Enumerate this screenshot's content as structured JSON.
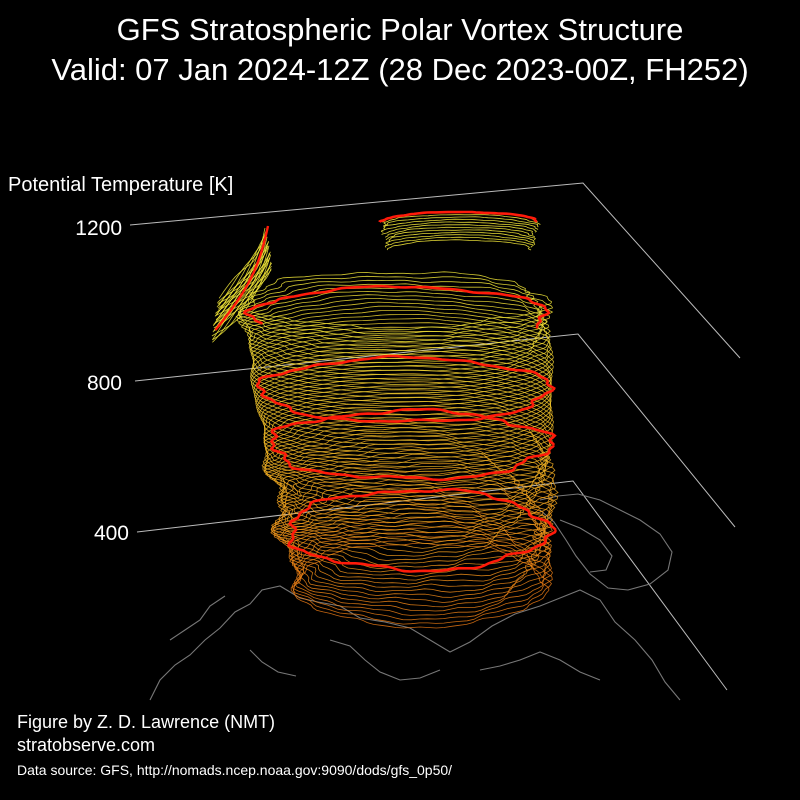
{
  "title": "GFS Stratospheric Polar Vortex Structure",
  "subtitle": "Valid: 07 Jan 2024-12Z  (28 Dec 2023-00Z, FH252)",
  "credits": {
    "author": "Figure by Z. D. Lawrence (NMT)",
    "site": "stratobserve.com",
    "source": "Data source: GFS, http://nomads.ncep.noaa.gov:9090/dods/gfs_0p50/"
  },
  "colors": {
    "background": "#000000",
    "highlight_contour": "#ff1a0a",
    "upper_contours": "#f5ea3a",
    "mid_contours": "#f0a820",
    "lower_contours": "#e87814",
    "coastline": "#777777",
    "axis_lines": "#bbbbbb"
  },
  "chart_data": {
    "type": "3d isosurface",
    "zlabel": "Potential Temperature [K]",
    "z_ticks": [
      400,
      800,
      1200
    ],
    "z_range": [
      350,
      1200
    ],
    "highlighted_levels_count": 5
  }
}
